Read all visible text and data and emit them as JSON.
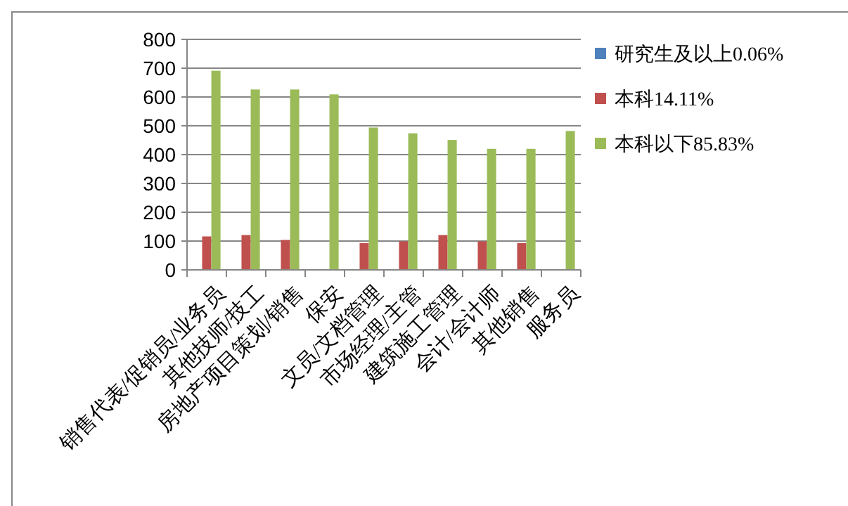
{
  "chart_data": {
    "type": "bar",
    "categories": [
      "销售代表/促销员/业务员",
      "其他技师/技工",
      "房地产项目策划/销售",
      "保安",
      "文员/文档管理",
      "市场经理/主管",
      "建筑施工管理",
      "会计/会计师",
      "其他销售",
      "服务员"
    ],
    "series": [
      {
        "name": "研究生及以上0.06%",
        "color": "#4f81bd",
        "values": [
          0,
          0,
          0,
          0,
          0,
          0,
          0,
          0,
          0,
          0
        ]
      },
      {
        "name": "本科14.11%",
        "color": "#c0504d",
        "values": [
          116,
          121,
          104,
          0,
          93,
          99,
          121,
          99,
          93,
          0
        ]
      },
      {
        "name": "本科以下85.83%",
        "color": "#9bbb59",
        "values": [
          691,
          626,
          626,
          609,
          494,
          474,
          451,
          420,
          420,
          482
        ]
      }
    ],
    "ylim": [
      0,
      800
    ],
    "yticks": [
      0,
      100,
      200,
      300,
      400,
      500,
      600,
      700,
      800
    ],
    "grid": "y",
    "legend": "right"
  }
}
